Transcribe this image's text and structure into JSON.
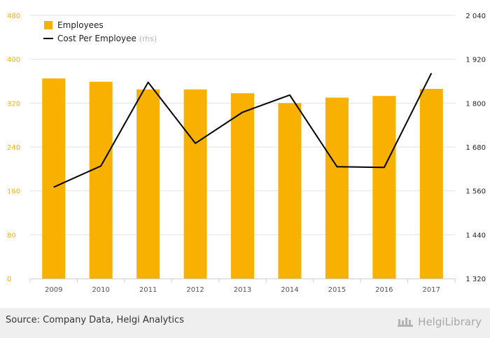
{
  "chart_data": {
    "type": "bar",
    "categories": [
      "2009",
      "2010",
      "2011",
      "2012",
      "2013",
      "2014",
      "2015",
      "2016",
      "2017"
    ],
    "series": [
      {
        "name": "Employees",
        "type": "bar",
        "axis": "left",
        "color": "#f8b100",
        "values": [
          365,
          359,
          345,
          345,
          338,
          320,
          330,
          333,
          346
        ]
      },
      {
        "name": "Cost Per Employee",
        "legend_suffix": "(rhs)",
        "type": "line",
        "axis": "right",
        "color": "#000000",
        "values": [
          1570,
          1628,
          1857,
          1690,
          1775,
          1822,
          1626,
          1624,
          1882
        ]
      }
    ],
    "ylim_left": [
      0,
      480
    ],
    "yticks_left": [
      "0",
      "80",
      "160",
      "240",
      "320",
      "400",
      "480"
    ],
    "ylim_right": [
      1320,
      2040
    ],
    "yticks_right": [
      "1 320",
      "1 440",
      "1 560",
      "1 680",
      "1 800",
      "1 920",
      "2 040"
    ],
    "left_axis_color": "#f8b100",
    "grid": true,
    "legend_position": "top-left"
  },
  "footer": {
    "source": "Source: Company Data, Helgi Analytics",
    "brand": "HelgiLibrary"
  }
}
